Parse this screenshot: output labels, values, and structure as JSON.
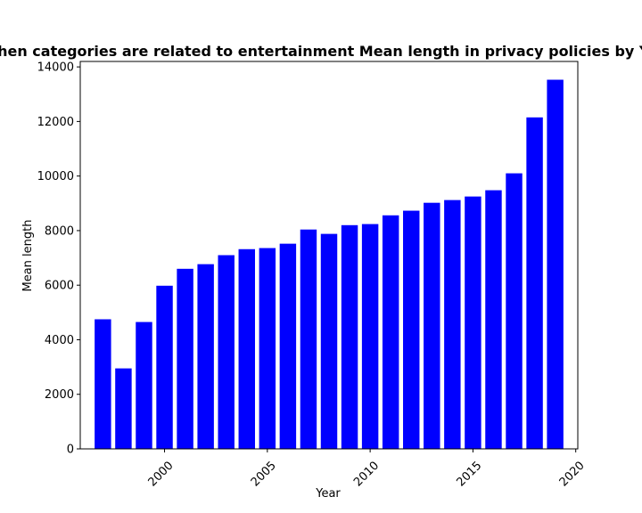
{
  "chart_data": {
    "type": "bar",
    "title": "When categories are related to entertainment Mean length in privacy policies by Year",
    "xlabel": "Year",
    "ylabel": "Mean length",
    "x": [
      1997,
      1998,
      1999,
      2000,
      2001,
      2002,
      2003,
      2004,
      2005,
      2006,
      2007,
      2008,
      2009,
      2010,
      2011,
      2012,
      2013,
      2014,
      2015,
      2016,
      2017,
      2018,
      2019
    ],
    "values": [
      4750,
      2950,
      4650,
      5980,
      6600,
      6770,
      7100,
      7320,
      7360,
      7520,
      8040,
      7880,
      8200,
      8240,
      8560,
      8730,
      9020,
      9120,
      9250,
      9480,
      10100,
      12150,
      13530
    ],
    "xlim": [
      1995.9,
      2020.1
    ],
    "ylim": [
      0,
      14200
    ],
    "xticks": [
      2000,
      2005,
      2010,
      2015,
      2020
    ],
    "yticks": [
      0,
      2000,
      4000,
      6000,
      8000,
      10000,
      12000,
      14000
    ],
    "bar_color": "#0000ff",
    "grid": false
  }
}
